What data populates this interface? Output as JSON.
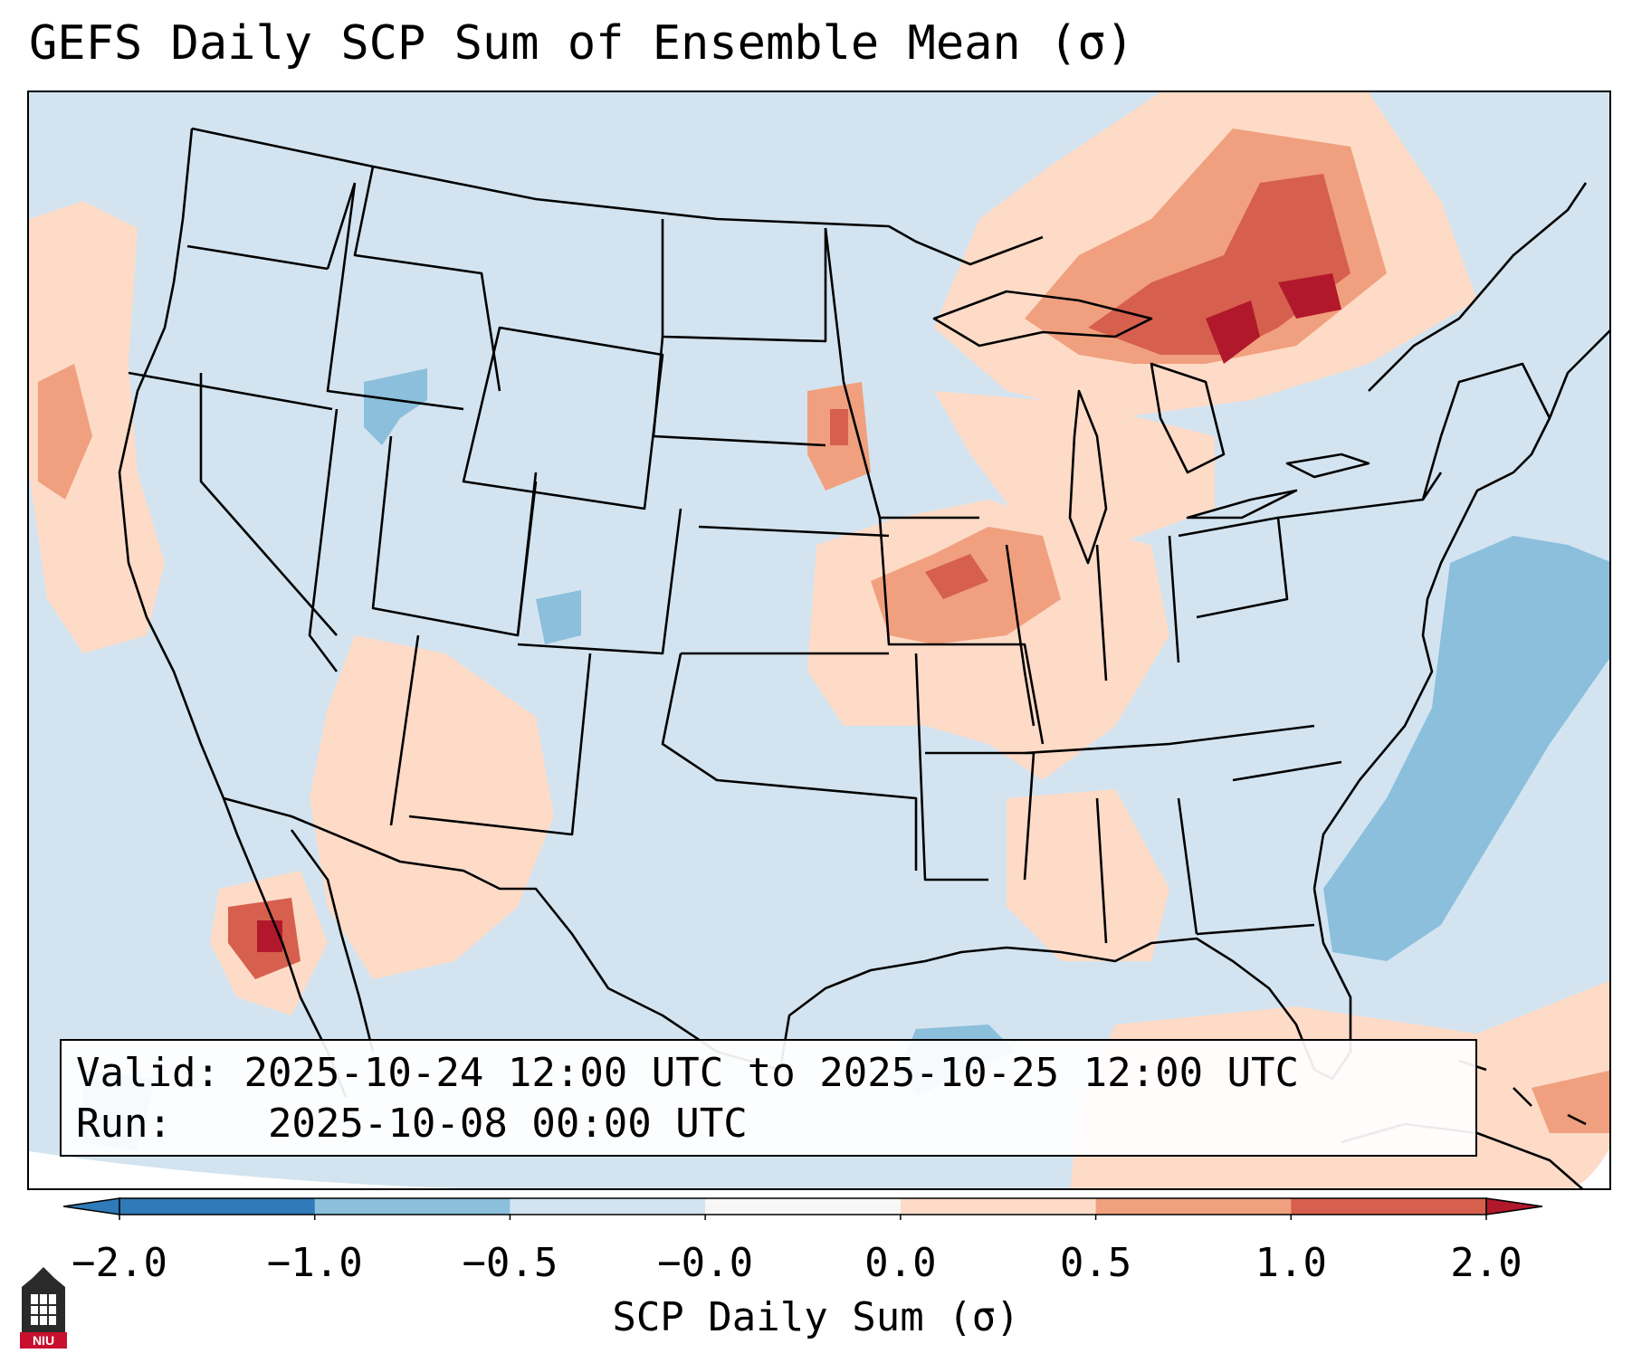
{
  "title": "GEFS Daily SCP Sum of Ensemble Mean (σ)",
  "info": {
    "valid_label": "Valid:",
    "valid_value": "2025-10-24 12:00 UTC to 2025-10-25 12:00 UTC",
    "run_label": "Run:",
    "run_value": "2025-10-08 00:00 UTC"
  },
  "colorbar": {
    "title": "SCP Daily Sum (σ)",
    "ticks": [
      "−2.0",
      "−1.0",
      "−0.5",
      "−0.0",
      "0.0",
      "0.5",
      "1.0",
      "2.0"
    ],
    "colors": [
      "#2f7ab9",
      "#8bbfdc",
      "#d3e4f0",
      "#f7f7f7",
      "#fddbc7",
      "#f0a07e",
      "#d6604d",
      "#b2182b"
    ],
    "extend": "both"
  },
  "logo": {
    "text": "NIU",
    "color": "#c8102e"
  },
  "map": {
    "region": "Contiguous United States",
    "background_color": "#d3e4f0",
    "anomaly_areas": [
      {
        "name": "Ontario / Quebec maximum",
        "level": "1.0 to 2.0",
        "color": "#b2182b"
      },
      {
        "name": "Upper Midwest / Great Lakes",
        "level": "0.5 to 1.0",
        "color": "#d6604d"
      },
      {
        "name": "Iowa / Missouri / Illinois",
        "level": "0.5 to 1.0",
        "color": "#d6604d"
      },
      {
        "name": "Baja California",
        "level": "1.0 to 2.0",
        "color": "#b2182b"
      },
      {
        "name": "Desert Southwest",
        "level": "0.0 to 0.5",
        "color": "#fddbc7"
      },
      {
        "name": "Western Atlantic",
        "level": "-1.0 to -0.5",
        "color": "#8bbfdc"
      },
      {
        "name": "Gulf of Mexico",
        "level": "-1.0 to -0.5",
        "color": "#8bbfdc"
      }
    ]
  }
}
